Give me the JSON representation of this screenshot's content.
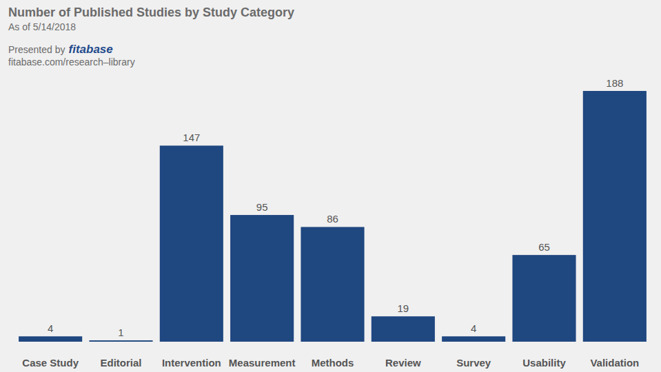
{
  "chart_data": {
    "type": "bar",
    "title": "Number of Published Studies by Study Category",
    "subtitle": "As of 5/14/2018",
    "annotations": [
      "Presented by",
      "fitabase",
      "fitabase.com/research–library"
    ],
    "categories": [
      "Case Study",
      "Editorial",
      "Intervention",
      "Measurement",
      "Methods",
      "Review",
      "Survey",
      "Usability",
      "Validation"
    ],
    "values": [
      4,
      1,
      147,
      95,
      86,
      19,
      4,
      65,
      188
    ],
    "color": "#1f4780",
    "ylim": [
      0,
      188
    ],
    "data_labels": true,
    "tick_labels": "x",
    "grid": false
  }
}
